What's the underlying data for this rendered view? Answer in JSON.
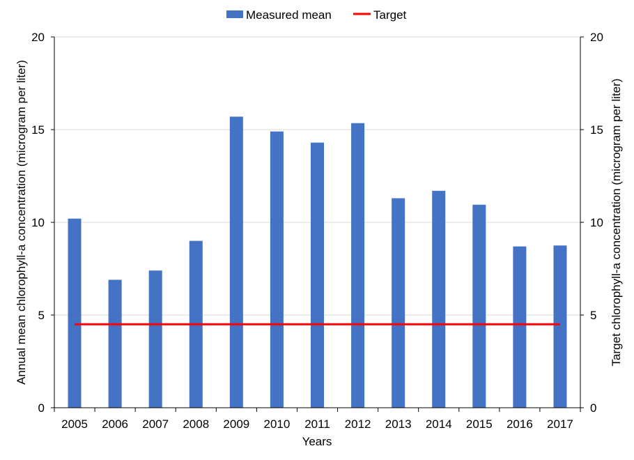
{
  "chart_data": {
    "type": "bar",
    "categories": [
      "2005",
      "2006",
      "2007",
      "2008",
      "2009",
      "2010",
      "2011",
      "2012",
      "2013",
      "2014",
      "2015",
      "2016",
      "2017"
    ],
    "series": [
      {
        "name": "Measured mean",
        "kind": "bar",
        "color": "#4472C4",
        "values": [
          10.2,
          6.9,
          7.4,
          9.0,
          15.7,
          14.9,
          14.3,
          15.35,
          11.3,
          11.7,
          10.95,
          8.7,
          8.75
        ]
      },
      {
        "name": "Target",
        "kind": "line",
        "color": "#FF0000",
        "values": [
          4.5,
          4.5,
          4.5,
          4.5,
          4.5,
          4.5,
          4.5,
          4.5,
          4.5,
          4.5,
          4.5,
          4.5,
          4.5
        ]
      }
    ],
    "xlabel": "Years",
    "ylabel": "Annual mean chlorophyll-a concentration (microgram per liter)",
    "y2label": "Target chlorophyll-a concentration (microgram per liter)",
    "ylim": [
      0,
      20
    ],
    "y2lim": [
      0,
      20
    ],
    "yticks": [
      "0",
      "5",
      "10",
      "15",
      "20"
    ],
    "y2ticks": [
      "0",
      "5",
      "10",
      "15",
      "20"
    ],
    "grid": true,
    "legend_position": "top-center"
  }
}
